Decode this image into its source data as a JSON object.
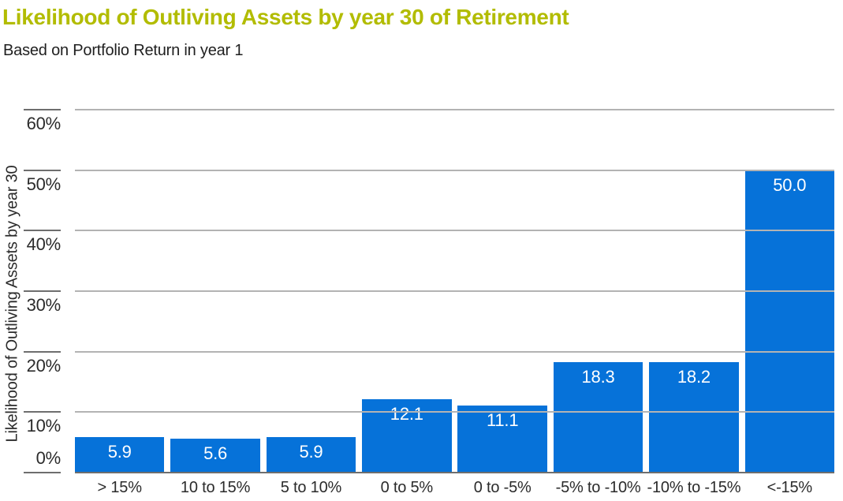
{
  "header": {
    "title": "Likelihood of Outliving Assets by year 30 of Retirement",
    "subtitle": "Based on Portfolio Return in year 1"
  },
  "chart_data": {
    "type": "bar",
    "title": "Likelihood of Outliving Assets by year 30 of Retirement",
    "subtitle": "Based on Portfolio Return in year 1",
    "categories": [
      "> 15%",
      "10 to 15%",
      "5 to 10%",
      "0 to 5%",
      "0 to -5%",
      "-5% to -10%",
      "-10% to -15%",
      "<-15%"
    ],
    "values": [
      5.9,
      5.6,
      5.9,
      12.1,
      11.1,
      18.3,
      18.2,
      50.0
    ],
    "bar_labels": [
      "5.9",
      "5.6",
      "5.9",
      "12.1",
      "11.1",
      "18.3",
      "18.2",
      "50.0"
    ],
    "xlabel": "",
    "ylabel": "Likelihood of Outliving Assets by year 30",
    "yticks": [
      "0%",
      "10%",
      "20%",
      "30%",
      "40%",
      "50%",
      "60%"
    ],
    "ylim": [
      0,
      60
    ],
    "grid": true,
    "legend": false,
    "colors": {
      "bar": "#0672d9",
      "title": "#b2bc00",
      "subtitle": "#1f1f1f",
      "text": "#2b2b2b",
      "gridline": "#b3b3b3",
      "axis": "#6e6e6e",
      "bar_label": "#ffffff"
    }
  }
}
